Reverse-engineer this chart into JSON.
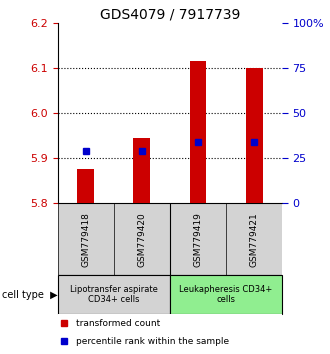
{
  "title": "GDS4079 / 7917739",
  "samples": [
    "GSM779418",
    "GSM779420",
    "GSM779419",
    "GSM779421"
  ],
  "bar_values": [
    5.875,
    5.945,
    6.115,
    6.1
  ],
  "bar_bottom": 5.8,
  "blue_values": [
    5.915,
    5.915,
    5.935,
    5.935
  ],
  "ylim": [
    5.8,
    6.2
  ],
  "yticks_left": [
    5.8,
    5.9,
    6.0,
    6.1,
    6.2
  ],
  "yticks_right": [
    0,
    25,
    50,
    75,
    100
  ],
  "bar_color": "#cc0000",
  "blue_color": "#0000cc",
  "groups": [
    {
      "label": "Lipotransfer aspirate\nCD34+ cells",
      "indices": [
        0,
        1
      ],
      "color": "#d3d3d3"
    },
    {
      "label": "Leukapheresis CD34+\ncells",
      "indices": [
        2,
        3
      ],
      "color": "#90ee90"
    }
  ],
  "cell_type_label": "cell type",
  "legend_items": [
    {
      "color": "#cc0000",
      "label": "transformed count"
    },
    {
      "color": "#0000cc",
      "label": "percentile rank within the sample"
    }
  ],
  "grid_yticks": [
    5.9,
    6.0,
    6.1
  ],
  "bar_width": 0.3,
  "title_fontsize": 10,
  "tick_fontsize": 8,
  "label_fontsize": 7.5
}
